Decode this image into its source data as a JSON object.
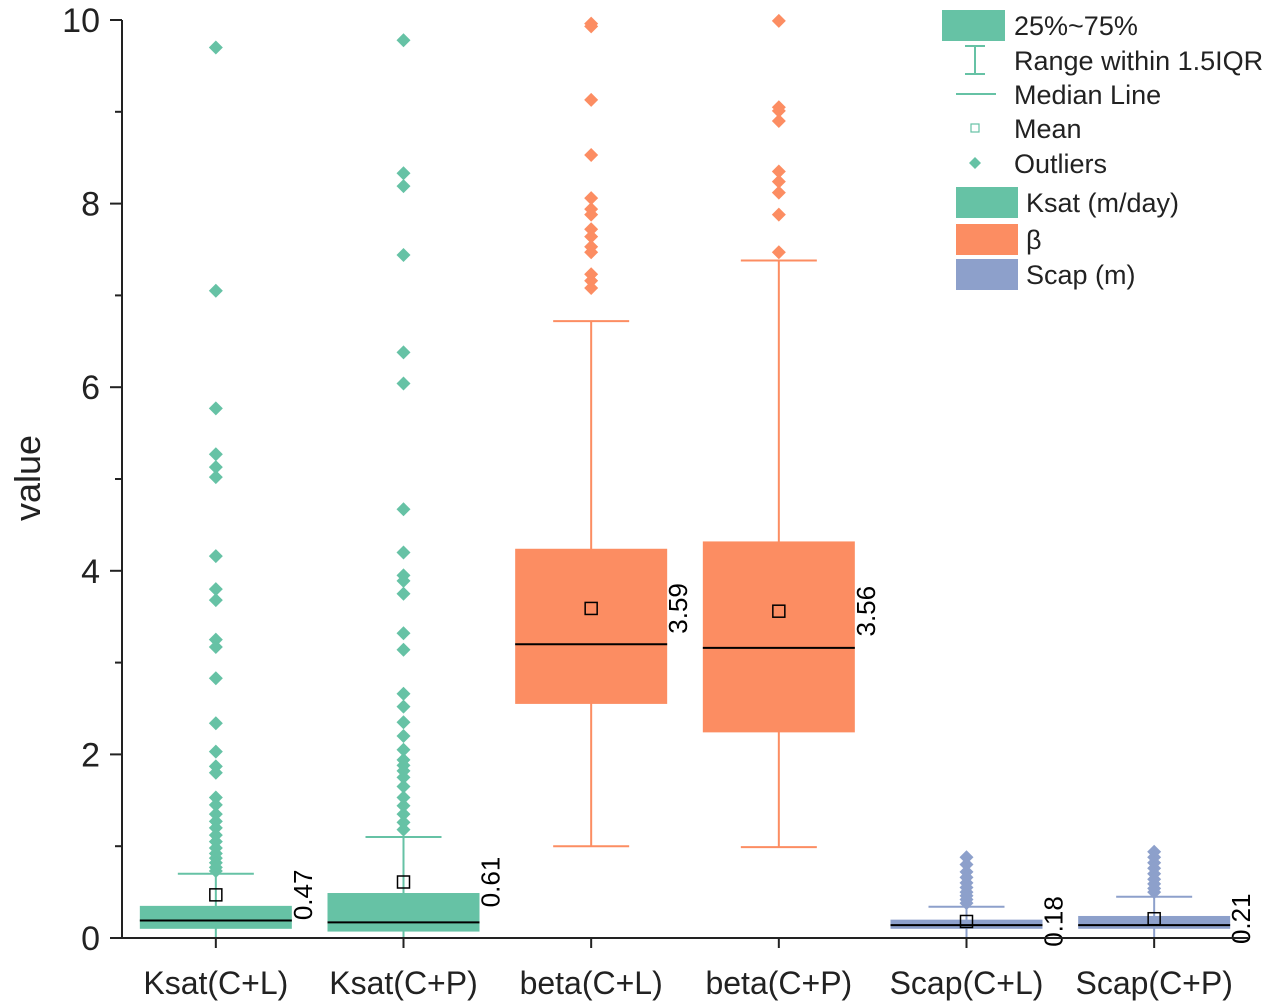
{
  "chart_data": {
    "type": "boxplot",
    "ylabel": "value",
    "xlabel": "",
    "ylim": [
      0,
      10
    ],
    "yticks": [
      "0",
      "2",
      "4",
      "6",
      "8",
      "10"
    ],
    "categories": [
      "Ksat(C+L)",
      "Ksat(C+P)",
      "beta(C+L)",
      "beta(C+P)",
      "Scap(C+L)",
      "Scap(C+P)"
    ],
    "colors": {
      "ksat": "#66c2a5",
      "beta": "#fc8d62",
      "scap": "#8da0cb",
      "axis": "#222222",
      "median": "#000000"
    },
    "boxes": [
      {
        "name": "Ksat(C+L)",
        "group": "ksat",
        "q1": 0.1,
        "median": 0.19,
        "q3": 0.35,
        "whisker_low": 0.0,
        "whisker_high": 0.7,
        "mean": 0.47,
        "mean_label": "0.47",
        "outliers": [
          9.7,
          7.05,
          5.77,
          5.27,
          5.13,
          5.02,
          4.16,
          3.8,
          3.68,
          3.25,
          3.17,
          2.83,
          2.34,
          2.03,
          1.87,
          1.8,
          1.53,
          1.45,
          1.35,
          1.27,
          1.2,
          1.12,
          1.05,
          0.98,
          0.92,
          0.87,
          0.82,
          0.77,
          0.73
        ]
      },
      {
        "name": "Ksat(C+P)",
        "group": "ksat",
        "q1": 0.07,
        "median": 0.17,
        "q3": 0.49,
        "whisker_low": 0.0,
        "whisker_high": 1.1,
        "mean": 0.61,
        "mean_label": "0.61",
        "outliers": [
          9.78,
          8.33,
          8.19,
          7.44,
          6.38,
          6.04,
          4.67,
          4.2,
          3.95,
          3.89,
          3.75,
          3.32,
          3.14,
          2.66,
          2.52,
          2.35,
          2.2,
          2.05,
          1.94,
          1.88,
          1.82,
          1.75,
          1.65,
          1.53,
          1.44,
          1.35,
          1.26,
          1.18
        ]
      },
      {
        "name": "beta(C+L)",
        "group": "beta",
        "q1": 2.55,
        "median": 3.2,
        "q3": 4.24,
        "whisker_low": 1.0,
        "whisker_high": 6.72,
        "mean": 3.59,
        "mean_label": "3.59",
        "outliers": [
          9.96,
          9.93,
          9.13,
          8.53,
          8.06,
          7.94,
          7.88,
          7.72,
          7.64,
          7.53,
          7.47,
          7.23,
          7.16,
          7.08
        ]
      },
      {
        "name": "beta(C+P)",
        "group": "beta",
        "q1": 2.24,
        "median": 3.16,
        "q3": 4.32,
        "whisker_low": 0.99,
        "whisker_high": 7.38,
        "mean": 3.56,
        "mean_label": "3.56",
        "outliers": [
          9.99,
          9.05,
          9.01,
          8.9,
          8.35,
          8.24,
          8.12,
          7.88,
          7.47
        ]
      },
      {
        "name": "Scap(C+L)",
        "group": "scap",
        "q1": 0.1,
        "median": 0.14,
        "q3": 0.2,
        "whisker_low": 0.0,
        "whisker_high": 0.34,
        "mean": 0.18,
        "mean_label": "0.18",
        "outliers": [
          0.88,
          0.8,
          0.72,
          0.66,
          0.6,
          0.55,
          0.5,
          0.46,
          0.42,
          0.38
        ]
      },
      {
        "name": "Scap(C+P)",
        "group": "scap",
        "q1": 0.1,
        "median": 0.14,
        "q3": 0.24,
        "whisker_low": 0.0,
        "whisker_high": 0.45,
        "mean": 0.21,
        "mean_label": "0.21",
        "outliers": [
          0.94,
          0.88,
          0.82,
          0.76,
          0.7,
          0.64,
          0.59,
          0.54,
          0.5
        ]
      }
    ],
    "legend": {
      "placement": "top-right",
      "items": [
        {
          "kind": "box",
          "label": "25%~75%",
          "color": "#66c2a5"
        },
        {
          "kind": "whisker",
          "label": "Range within 1.5IQR",
          "color": "#66c2a5"
        },
        {
          "kind": "median",
          "label": "Median Line",
          "color": "#66c2a5"
        },
        {
          "kind": "mean",
          "label": "Mean",
          "color": "#66c2a5"
        },
        {
          "kind": "outlier",
          "label": "Outliers",
          "color": "#66c2a5"
        },
        {
          "kind": "box",
          "label": "Ksat (m/day)",
          "color": "#66c2a5"
        },
        {
          "kind": "box",
          "label": "β",
          "color": "#fc8d62"
        },
        {
          "kind": "box",
          "label": "Scap (m)",
          "color": "#8da0cb"
        }
      ]
    }
  }
}
